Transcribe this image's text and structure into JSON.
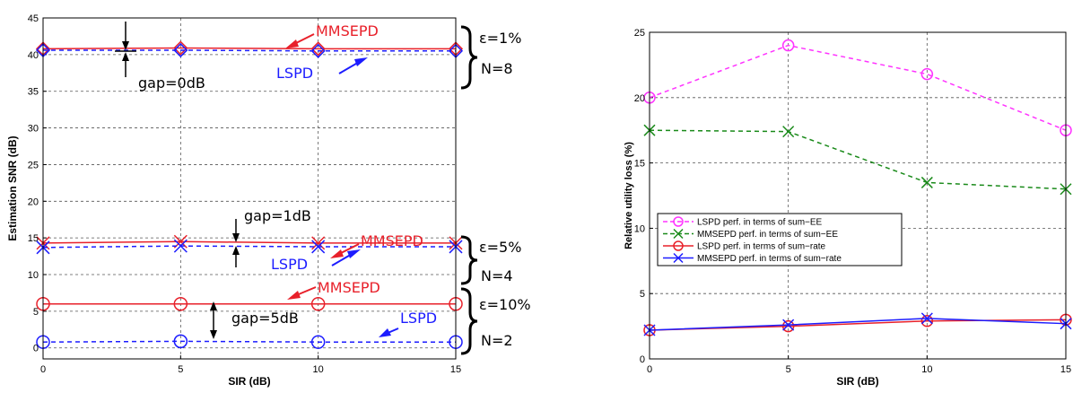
{
  "chart_data": [
    {
      "type": "line",
      "xlabel": "SIR (dB)",
      "ylabel": "Estimation SNR (dB)",
      "x": [
        0,
        5,
        10,
        15
      ],
      "xticks": [
        0,
        5,
        10,
        15
      ],
      "yticks": [
        0,
        5,
        10,
        15,
        20,
        25,
        30,
        35,
        40,
        45
      ],
      "xlim": [
        0,
        15
      ],
      "ylim": [
        -1.5,
        45
      ],
      "grid": true,
      "series": [
        {
          "group": "N8",
          "color": "#e8202a",
          "dash": false,
          "marker": "diamond",
          "values": [
            40.8,
            40.9,
            40.8,
            40.8
          ]
        },
        {
          "group": "N8",
          "color": "#1c1cff",
          "dash": true,
          "marker": "diamond",
          "values": [
            40.6,
            40.6,
            40.5,
            40.5
          ]
        },
        {
          "group": "N4",
          "color": "#e8202a",
          "dash": false,
          "marker": "x",
          "values": [
            14.3,
            14.5,
            14.3,
            14.3
          ]
        },
        {
          "group": "N4",
          "color": "#1c1cff",
          "dash": true,
          "marker": "x",
          "values": [
            13.7,
            13.9,
            13.8,
            13.8
          ]
        },
        {
          "group": "N2",
          "color": "#e8202a",
          "dash": false,
          "marker": "circle",
          "values": [
            6.0,
            6.0,
            6.0,
            6.0
          ]
        },
        {
          "group": "N2",
          "color": "#1c1cff",
          "dash": true,
          "marker": "circle",
          "values": [
            0.8,
            0.9,
            0.8,
            0.8
          ]
        }
      ],
      "annotations": [
        {
          "text": "MMSEPD",
          "color": "#e8202a"
        },
        {
          "text": "LSPD",
          "color": "#1c1cff"
        },
        {
          "text": "gap=0dB",
          "color": "#000000"
        },
        {
          "text": "MMSEPD",
          "color": "#e8202a"
        },
        {
          "text": "LSPD",
          "color": "#1c1cff"
        },
        {
          "text": "gap=1dB",
          "color": "#000000"
        },
        {
          "text": "MMSEPD",
          "color": "#e8202a"
        },
        {
          "text": "LSPD",
          "color": "#1c1cff"
        },
        {
          "text": "gap=5dB",
          "color": "#000000"
        }
      ],
      "conditions": [
        {
          "eps": "ε=1%",
          "n": "N=8"
        },
        {
          "eps": "ε=5%",
          "n": "N=4"
        },
        {
          "eps": "ε=10%",
          "n": "N=2"
        }
      ]
    },
    {
      "type": "line",
      "xlabel": "SIR (dB)",
      "ylabel": "Relative utility loss (%)",
      "x": [
        0,
        5,
        10,
        15
      ],
      "xticks": [
        0,
        5,
        10,
        15
      ],
      "yticks": [
        0,
        5,
        10,
        15,
        20,
        25
      ],
      "xlim": [
        0,
        15
      ],
      "ylim": [
        0,
        25
      ],
      "grid": true,
      "legend": "center-left",
      "series": [
        {
          "name": "LSPD perf. in terms of sum−EE",
          "color": "#ff33ff",
          "dash": true,
          "marker": "circle",
          "values": [
            20.0,
            24.0,
            21.8,
            17.5
          ]
        },
        {
          "name": "MMSEPD perf. in terms of sum−EE",
          "color": "#1a8a1a",
          "dash": true,
          "marker": "x",
          "values": [
            17.5,
            17.4,
            13.5,
            13.0
          ]
        },
        {
          "name": "LSPD perf. in terms of  sum−rate",
          "color": "#e8202a",
          "dash": false,
          "marker": "circle",
          "values": [
            2.2,
            2.5,
            2.9,
            3.0
          ]
        },
        {
          "name": "MMSEPD perf. in terms of sum−rate",
          "color": "#1c1cff",
          "dash": false,
          "marker": "x",
          "values": [
            2.2,
            2.6,
            3.1,
            2.7
          ]
        }
      ]
    }
  ]
}
